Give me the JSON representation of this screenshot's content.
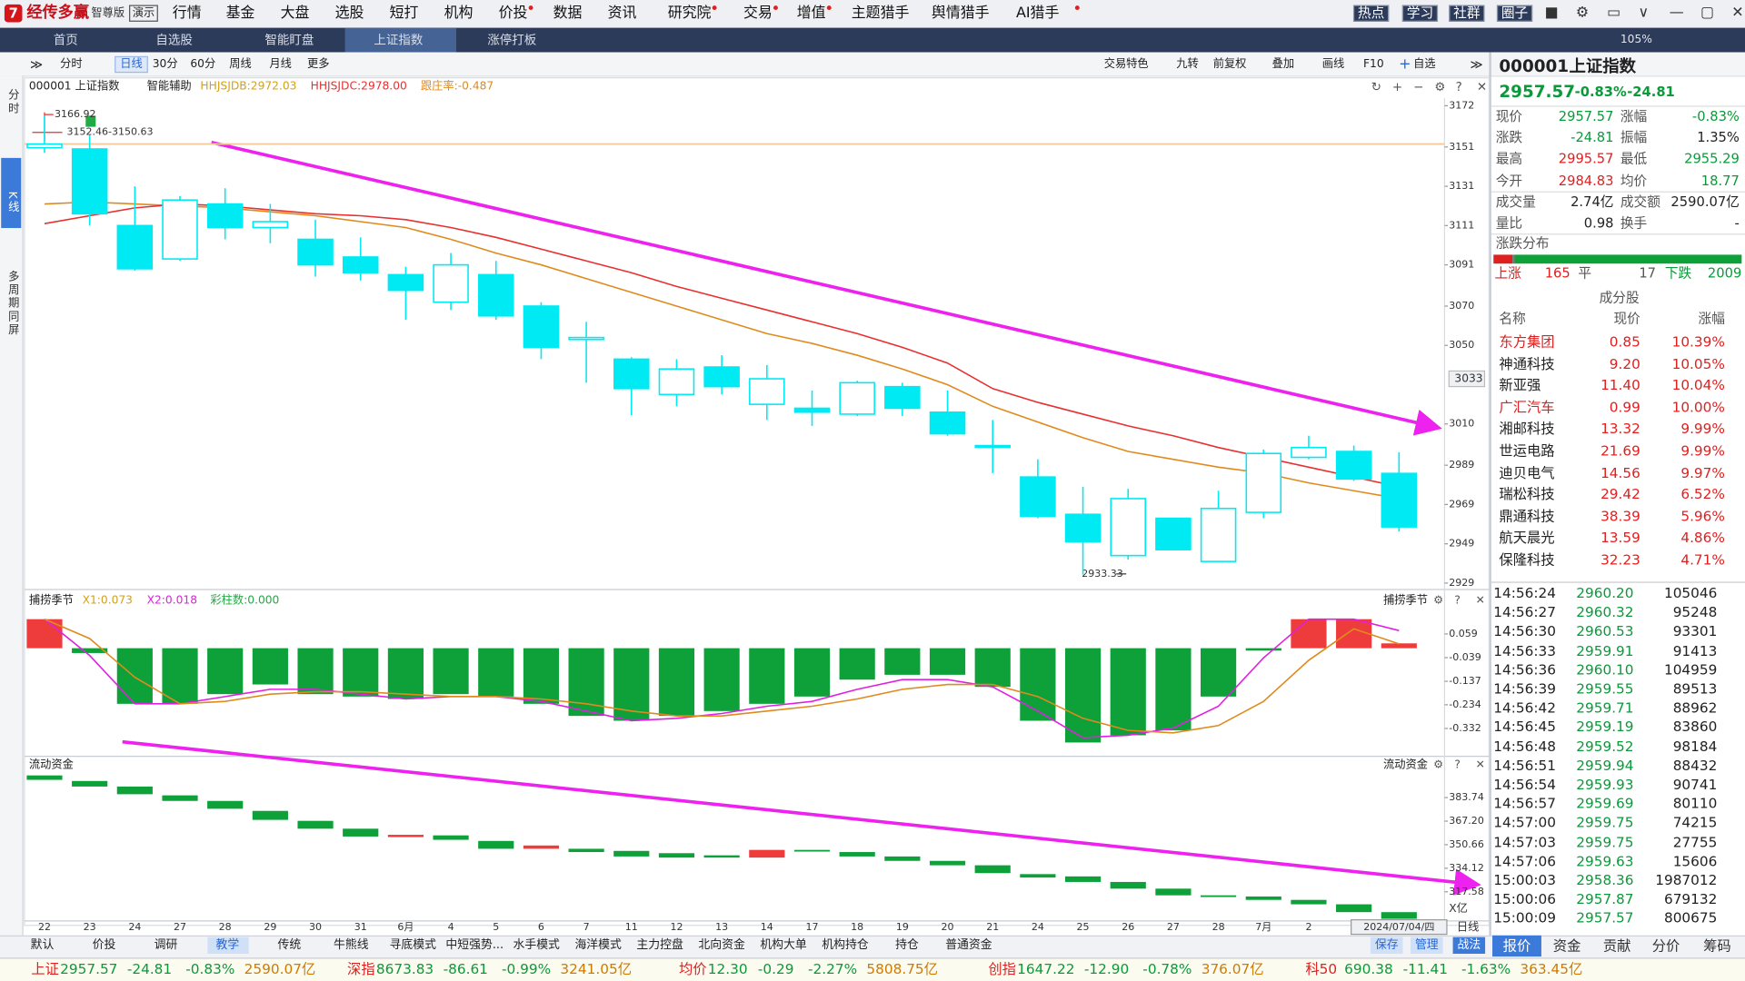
{
  "app": {
    "logo": "经传多赢",
    "edition": "智尊版",
    "demo": "演示"
  },
  "menu": [
    "行情",
    "基金",
    "大盘",
    "选股",
    "短打",
    "机构",
    "价投",
    "数据",
    "资讯",
    "研究院",
    "交易",
    "增值",
    "主题猎手",
    "舆情猎手",
    "AI猎手"
  ],
  "top_right": [
    "热点",
    "学习",
    "社群",
    "圈子"
  ],
  "zoom": "105%",
  "tabs": [
    "首页",
    "自选股",
    "智能盯盘",
    "上证指数",
    "涨停打板"
  ],
  "side_tabs": [
    "分时",
    "K线",
    "多周期同屏"
  ],
  "periods": [
    "分时",
    "日线",
    "30分",
    "60分",
    "周线",
    "月线",
    "更多"
  ],
  "tools": [
    "交易特色",
    "九转",
    "前复权",
    "叠加",
    "画线",
    "F10",
    "自选"
  ],
  "kline": {
    "title": "000001 上证指数",
    "aux": "智能辅助",
    "legend": [
      "HHJSJDB:2972.03",
      "HHJSJDC:2978.00",
      "跟庄率:-0.487"
    ],
    "ylim": [
      2928,
      3176
    ],
    "yticks": [
      3172,
      3151,
      3131,
      3111,
      3091,
      3070,
      3050,
      3010,
      2989,
      2969,
      2949,
      2929
    ],
    "cursor_price": 3033,
    "hline": 3152.5,
    "annotations": [
      "3166.92",
      "3152.46-3150.63",
      "2933.33"
    ],
    "candle_color": "#00eaf4",
    "candles": [
      [
        3150.63,
        3166.92,
        3148,
        3152.46
      ],
      [
        3150,
        3157,
        3111,
        3117
      ],
      [
        3111,
        3131,
        3088,
        3089
      ],
      [
        3094,
        3126,
        3093,
        3124
      ],
      [
        3122,
        3130,
        3104,
        3110
      ],
      [
        3110,
        3122,
        3102,
        3113
      ],
      [
        3104,
        3114,
        3085,
        3091
      ],
      [
        3095,
        3105,
        3083,
        3087
      ],
      [
        3086,
        3090,
        3063,
        3078
      ],
      [
        3072,
        3097,
        3068,
        3091
      ],
      [
        3086,
        3093,
        3063,
        3065
      ],
      [
        3070,
        3072,
        3043,
        3049
      ],
      [
        3053,
        3062,
        3031,
        3054
      ],
      [
        3043,
        3044,
        3014.5,
        3028
      ],
      [
        3025,
        3043,
        3019,
        3038
      ],
      [
        3039,
        3045,
        3025,
        3029
      ],
      [
        3020,
        3040,
        3012,
        3033
      ],
      [
        3018,
        3027,
        3009,
        3016
      ],
      [
        3015,
        3032,
        3014,
        3031
      ],
      [
        3029,
        3031,
        3014,
        3018
      ],
      [
        3016,
        3027,
        3004,
        3005
      ],
      [
        2999,
        3012,
        2985,
        2999
      ],
      [
        2983,
        2992,
        2962,
        2963
      ],
      [
        2964,
        2978,
        2933.33,
        2950
      ],
      [
        2943,
        2977,
        2941,
        2972
      ],
      [
        2962,
        2962,
        2946,
        2946
      ],
      [
        2940,
        2976,
        2940,
        2967
      ],
      [
        2965,
        2997,
        2962,
        2995
      ],
      [
        2993,
        3004,
        2992,
        2998
      ],
      [
        2996,
        2999,
        2981,
        2982
      ],
      [
        2984.83,
        2995.57,
        2955.29,
        2957.57
      ]
    ],
    "lines": [
      {
        "color": "#e08a1e",
        "values": [
          3122,
          3123,
          3122,
          3121,
          3120,
          3118,
          3116,
          3113,
          3110,
          3104,
          3097,
          3091,
          3084,
          3077,
          3070,
          3063,
          3056,
          3051,
          3045,
          3038,
          3030,
          3019,
          3011,
          3003,
          2996,
          2992,
          2988,
          2985,
          2980,
          2976,
          2972.03
        ]
      },
      {
        "color": "#e83030",
        "values": [
          3112,
          3116,
          3120,
          3122,
          3121,
          3119,
          3117,
          3116,
          3114,
          3110,
          3105,
          3099,
          3093,
          3087,
          3080,
          3074,
          3068,
          3062,
          3056,
          3049,
          3041,
          3028,
          3021,
          3015,
          3009,
          3004,
          2998,
          2993,
          2988,
          2983,
          2978.0
        ]
      }
    ],
    "categories": [
      "22",
      "23",
      "24",
      "27",
      "28",
      "29",
      "30",
      "31",
      "6月",
      "4",
      "5",
      "6",
      "7",
      "11",
      "12",
      "13",
      "14",
      "17",
      "18",
      "19",
      "20",
      "21",
      "24",
      "25",
      "26",
      "27",
      "28",
      "7月",
      "2",
      null,
      "2024/07/04/四"
    ],
    "period_label": "日线"
  },
  "ind1": {
    "title": "捕捞季节",
    "legend": [
      "X1:0.073",
      "X2:0.018",
      "彩柱数:0.000"
    ],
    "ylim": [
      -0.438,
      0.16
    ],
    "yticks": [
      0.059,
      -0.039,
      -0.137,
      -0.234,
      -0.332
    ],
    "bars": [
      0.12,
      -0.02,
      -0.23,
      -0.23,
      -0.19,
      -0.15,
      -0.19,
      -0.2,
      -0.21,
      -0.19,
      -0.2,
      -0.23,
      -0.28,
      -0.3,
      -0.28,
      -0.26,
      -0.23,
      -0.2,
      -0.13,
      -0.11,
      -0.11,
      -0.16,
      -0.3,
      -0.39,
      -0.36,
      -0.34,
      -0.2,
      -0.01,
      0.12,
      0.12,
      0.02
    ],
    "lines": [
      {
        "color": "#e020e0",
        "values": [
          0.12,
          -0.03,
          -0.23,
          -0.23,
          -0.2,
          -0.17,
          -0.17,
          -0.19,
          -0.21,
          -0.2,
          -0.2,
          -0.22,
          -0.26,
          -0.3,
          -0.29,
          -0.27,
          -0.24,
          -0.22,
          -0.17,
          -0.13,
          -0.13,
          -0.16,
          -0.26,
          -0.37,
          -0.36,
          -0.33,
          -0.24,
          -0.04,
          0.12,
          0.12,
          0.073
        ]
      },
      {
        "color": "#e08a1e",
        "values": [
          0.12,
          0.04,
          -0.12,
          -0.23,
          -0.22,
          -0.19,
          -0.18,
          -0.18,
          -0.19,
          -0.2,
          -0.2,
          -0.21,
          -0.23,
          -0.26,
          -0.28,
          -0.28,
          -0.26,
          -0.24,
          -0.21,
          -0.17,
          -0.15,
          -0.15,
          -0.2,
          -0.29,
          -0.34,
          -0.35,
          -0.32,
          -0.22,
          -0.05,
          0.08,
          0.018
        ]
      }
    ]
  },
  "ind2": {
    "title": "流动资金",
    "ylim": [
      297.9,
      401
    ],
    "yticks": [
      383.74,
      {
        "value": 367.2,
        "label": "367.20"
      },
      350.66,
      334.12,
      317.58
    ],
    "unit": "X亿",
    "bars": [
      [
        399.3,
        396.2
      ],
      [
        395.4,
        391.5
      ],
      [
        391.5,
        386.1
      ],
      [
        385.3,
        381.4
      ],
      [
        381.4,
        375.9
      ],
      [
        374.4,
        368.1
      ],
      [
        367.4,
        361.9
      ],
      [
        361.9,
        356.4
      ],
      [
        356.0,
        357.6
      ],
      [
        357.2,
        354.1
      ],
      [
        353.3,
        347.8
      ],
      [
        347.8,
        350.1
      ],
      [
        347.8,
        345.5
      ],
      [
        346.3,
        342.4
      ],
      [
        344.7,
        341.6
      ],
      [
        343.2,
        341.6
      ],
      [
        341.6,
        347.0
      ],
      [
        347.0,
        346.3
      ],
      [
        345.5,
        342.4
      ],
      [
        342.4,
        339.3
      ],
      [
        339.3,
        336.2
      ],
      [
        336.2,
        330.7
      ],
      [
        330.0,
        327.6
      ],
      [
        328.4,
        324.5
      ],
      [
        324.5,
        319.8
      ],
      [
        319.8,
        315.1
      ],
      [
        315.1,
        314.3
      ],
      [
        314.3,
        311.9
      ],
      [
        311.9,
        308.8
      ],
      [
        308.8,
        303.3
      ],
      [
        303.3,
        298.6
      ]
    ]
  },
  "quote": {
    "code": "000001",
    "name": "上证指数",
    "price": "2957.57",
    "pct": "-0.83%",
    "chg": "-24.81",
    "fields": [
      [
        "现价",
        "2957.57",
        "涨幅",
        "-0.83%"
      ],
      [
        "涨跌",
        "-24.81",
        "振幅",
        "1.35%"
      ],
      [
        "最高",
        "2995.57",
        "最低",
        "2955.29"
      ],
      [
        "今开",
        "2984.83",
        "均价",
        "18.77"
      ],
      [
        "成交量",
        "2.74亿",
        "成交额",
        "2590.07亿"
      ],
      [
        "量比",
        "0.98",
        "换手",
        "-"
      ]
    ],
    "dist_title": "涨跌分布",
    "dist": {
      "up_label": "上涨",
      "up": 165,
      "flat_label": "平",
      "flat": 17,
      "down_label": "下跌",
      "down": 2009
    }
  },
  "constituents": {
    "title": "成分股",
    "header": [
      "名称",
      "现价",
      "涨幅"
    ],
    "highlighted": [
      0,
      3
    ],
    "rows": [
      [
        "东方集团",
        "0.85",
        "10.39%"
      ],
      [
        "神通科技",
        "9.20",
        "10.05%"
      ],
      [
        "新亚强",
        "11.40",
        "10.04%"
      ],
      [
        "广汇汽车",
        "0.99",
        "10.00%"
      ],
      [
        "湘邮科技",
        "13.32",
        "9.99%"
      ],
      [
        "世运电路",
        "21.69",
        "9.99%"
      ],
      [
        "迪贝电气",
        "14.56",
        "9.97%"
      ],
      [
        "瑞松科技",
        "29.42",
        "6.52%"
      ],
      [
        "鼎通科技",
        "38.39",
        "5.96%"
      ],
      [
        "航天晨光",
        "13.59",
        "4.86%"
      ],
      [
        "保隆科技",
        "32.23",
        "4.71%"
      ]
    ]
  },
  "trades": [
    [
      "14:56:24",
      "2960.20",
      "105046"
    ],
    [
      "14:56:27",
      "2960.32",
      "95248"
    ],
    [
      "14:56:30",
      "2960.53",
      "93301"
    ],
    [
      "14:56:33",
      "2959.91",
      "91413"
    ],
    [
      "14:56:36",
      "2960.10",
      "104959"
    ],
    [
      "14:56:39",
      "2959.55",
      "89513"
    ],
    [
      "14:56:42",
      "2959.71",
      "88962"
    ],
    [
      "14:56:45",
      "2959.19",
      "83860"
    ],
    [
      "14:56:48",
      "2959.52",
      "98184"
    ],
    [
      "14:56:51",
      "2959.94",
      "88432"
    ],
    [
      "14:56:54",
      "2959.93",
      "90741"
    ],
    [
      "14:56:57",
      "2959.69",
      "80110"
    ],
    [
      "14:57:00",
      "2959.75",
      "74215"
    ],
    [
      "14:57:03",
      "2959.75",
      "27755"
    ],
    [
      "14:57:06",
      "2959.63",
      "15606"
    ],
    [
      "15:00:03",
      "2958.36",
      "1987012"
    ],
    [
      "15:00:06",
      "2957.87",
      "679132"
    ],
    [
      "15:00:09",
      "2957.57",
      "800675"
    ]
  ],
  "right_tabs": [
    "报价",
    "资金",
    "贡献",
    "分价",
    "筹码"
  ],
  "bottom_tabs": [
    "默认",
    "价投",
    "调研",
    "教学",
    "传统",
    "牛熊线",
    "寻底模式",
    "中短强势...",
    "水手模式",
    "海洋模式",
    "主力控盘",
    "北向资金",
    "机构大单",
    "机构持仓",
    "持仓",
    "普通资金"
  ],
  "bottom_buttons": [
    "保存",
    "管理",
    "战法"
  ],
  "status": [
    {
      "name": "上证",
      "values": [
        "2957.57",
        "-24.81",
        "-0.83%",
        "2590.07亿"
      ]
    },
    {
      "name": "深指",
      "values": [
        "8673.83",
        "-86.61",
        "-0.99%",
        "3241.05亿"
      ]
    },
    {
      "name": "均价",
      "values": [
        "12.30",
        "-0.29",
        "-2.27%",
        "5808.75亿"
      ]
    },
    {
      "name": "创指",
      "values": [
        "1647.22",
        "-12.90",
        "-0.78%",
        "376.07亿"
      ]
    },
    {
      "name": "科50",
      "values": [
        "690.38",
        "-11.41",
        "-1.63%",
        "363.45亿"
      ]
    }
  ]
}
